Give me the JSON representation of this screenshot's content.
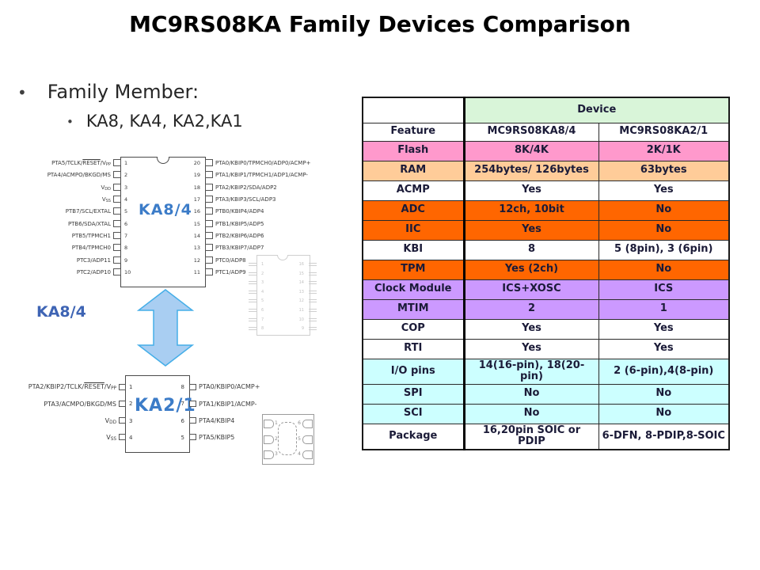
{
  "title": "MC9RS08KA Family Devices Comparison",
  "bullets": {
    "main": "Family Member:",
    "sub": "KA8, KA4, KA2,KA1"
  },
  "colors": {
    "chip_name_blue": "#3C7CC8",
    "caption_blue": "#3E64B4",
    "arrow_fill": "#A9CEF2",
    "arrow_stroke": "#45AEE8",
    "row_pink": "#FF99CC",
    "row_peach": "#FFCC99",
    "row_orange": "#FF6600",
    "row_purple": "#CC99FF",
    "row_cyan": "#CCFFFF",
    "header_green": "#D9F5D9"
  },
  "diagram": {
    "chip1": {
      "name": "KA8/4",
      "caption": "KA8/4",
      "left_pins": [
        {
          "num": 1,
          "label": "PTA5/TCLK/[ol]RESET[/ol]/V[sub]PP[/sub]"
        },
        {
          "num": 2,
          "label": "PTA4/ACMPO/BKGD/MS"
        },
        {
          "num": 3,
          "label": "V[sub]DD[/sub]"
        },
        {
          "num": 4,
          "label": "V[sub]SS[/sub]"
        },
        {
          "num": 5,
          "label": "PTB7/SCL/EXTAL"
        },
        {
          "num": 6,
          "label": "PTB6/SDA/XTAL"
        },
        {
          "num": 7,
          "label": "PTB5/TPMCH1"
        },
        {
          "num": 8,
          "label": "PTB4/TPMCH0"
        },
        {
          "num": 9,
          "label": "PTC3/ADP11"
        },
        {
          "num": 10,
          "label": "PTC2/ADP10"
        }
      ],
      "right_pins": [
        {
          "num": 20,
          "label": "PTA0/KBIP0/TPMCH0/ADP0/ACMP+"
        },
        {
          "num": 19,
          "label": "PTA1/KBIP1/TPMCH1/ADP1/ACMP-"
        },
        {
          "num": 18,
          "label": "PTA2/KBIP2/SDA/ADP2"
        },
        {
          "num": 17,
          "label": "PTA3/KBIP3/SCL/ADP3"
        },
        {
          "num": 16,
          "label": "PTB0/KBIP4/ADP4"
        },
        {
          "num": 15,
          "label": "PTB1/KBIP5/ADP5"
        },
        {
          "num": 14,
          "label": "PTB2/KBIP6/ADP6"
        },
        {
          "num": 13,
          "label": "PTB3/KBIP7/ADP7"
        },
        {
          "num": 12,
          "label": "PTC0/ADP8"
        },
        {
          "num": 11,
          "label": "PTC1/ADP9"
        }
      ]
    },
    "chip2": {
      "name": "KA2/1",
      "left_pins": [
        {
          "num": 1,
          "label": "PTA2/KBIP2/TCLK/[ol]RESET[/ol]/V[sub]PP[/sub]"
        },
        {
          "num": 2,
          "label": "PTA3/ACMPO/BKGD/MS"
        },
        {
          "num": 3,
          "label": "V[sub]DD[/sub]"
        },
        {
          "num": 4,
          "label": "V[sub]SS[/sub]"
        }
      ],
      "right_pins": [
        {
          "num": 8,
          "label": "PTA0/KBIP0/ACMP+"
        },
        {
          "num": 7,
          "label": "PTA1/KBIP1/ACMP-"
        },
        {
          "num": 6,
          "label": "PTA4/KBIP4"
        },
        {
          "num": 5,
          "label": "PTA5/KBIP5"
        }
      ]
    },
    "soic16_outline": {
      "left_numbers": [
        "1",
        "2",
        "3",
        "4",
        "5",
        "6",
        "7",
        "8"
      ],
      "right_numbers": [
        "16",
        "15",
        "14",
        "13",
        "12",
        "11",
        "10",
        "9"
      ]
    },
    "dfn6_outline": {
      "left_numbers": [
        "1",
        "2",
        "3"
      ],
      "right_numbers": [
        "6",
        "5",
        "4"
      ]
    }
  },
  "table": {
    "device_header": "Device",
    "columns": [
      "Feature",
      "MC9RS08KA8/4",
      "MC9RS08KA2/1"
    ],
    "rows": [
      {
        "feature": "Flash",
        "ka84": "8K/4K",
        "ka21": "2K/1K",
        "bg": "pink"
      },
      {
        "feature": "RAM",
        "ka84": "254bytes/ 126bytes",
        "ka21": "63bytes",
        "bg": "peach"
      },
      {
        "feature": "ACMP",
        "ka84": "Yes",
        "ka21": "Yes",
        "bg": "white"
      },
      {
        "feature": "ADC",
        "ka84": "12ch, 10bit",
        "ka21": "No",
        "bg": "orange"
      },
      {
        "feature": "IIC",
        "ka84": "Yes",
        "ka21": "No",
        "bg": "orange"
      },
      {
        "feature": "KBI",
        "ka84": "8",
        "ka21": "5 (8pin), 3 (6pin)",
        "bg": "white"
      },
      {
        "feature": "TPM",
        "ka84": "Yes (2ch)",
        "ka21": "No",
        "bg": "orange"
      },
      {
        "feature": "Clock Module",
        "ka84": "ICS+XOSC",
        "ka21": "ICS",
        "bg": "purple"
      },
      {
        "feature": "MTIM",
        "ka84": "2",
        "ka21": "1",
        "bg": "purple"
      },
      {
        "feature": "COP",
        "ka84": "Yes",
        "ka21": "Yes",
        "bg": "white"
      },
      {
        "feature": "RTI",
        "ka84": "Yes",
        "ka21": "Yes",
        "bg": "white"
      },
      {
        "feature": "I/O pins",
        "ka84": "14(16-pin), 18(20-pin)",
        "ka21": "2 (6-pin),4(8-pin)",
        "bg": "cyan"
      },
      {
        "feature": "SPI",
        "ka84": "No",
        "ka21": "No",
        "bg": "cyan"
      },
      {
        "feature": "SCI",
        "ka84": "No",
        "ka21": "No",
        "bg": "cyan"
      },
      {
        "feature": "Package",
        "ka84": "16,20pin SOIC or PDIP",
        "ka21": "6-DFN, 8-PDIP,8-SOIC",
        "bg": "white"
      }
    ]
  }
}
